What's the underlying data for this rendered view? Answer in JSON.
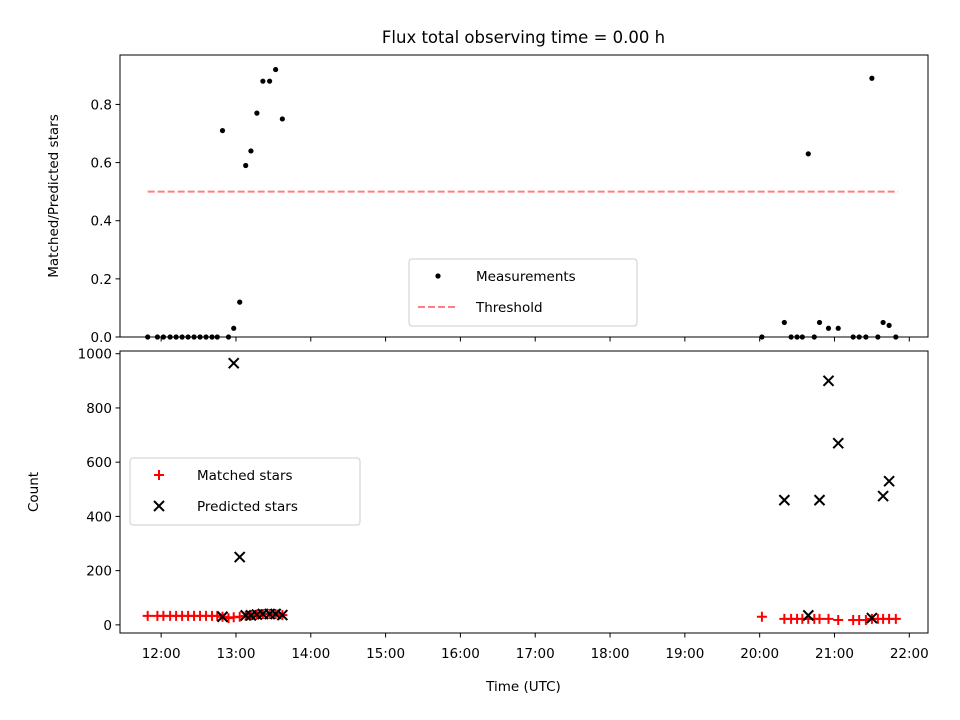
{
  "title": "Flux total observing time = 0.00 h",
  "xlabel": "Time (UTC)",
  "x_tick_labels": [
    "12:00",
    "13:00",
    "14:00",
    "15:00",
    "16:00",
    "17:00",
    "18:00",
    "19:00",
    "20:00",
    "21:00",
    "22:00"
  ],
  "chart_data": [
    {
      "type": "scatter",
      "ylabel": "Matched/Predicted stars",
      "xlim": [
        11.45,
        22.25
      ],
      "ylim": [
        0,
        0.97
      ],
      "y_ticks": [
        0.0,
        0.2,
        0.4,
        0.6,
        0.8
      ],
      "y_tick_labels": [
        "0.0",
        "0.2",
        "0.4",
        "0.6",
        "0.8"
      ],
      "legend": {
        "placement": "lower-center"
      },
      "series": [
        {
          "name": "Measurements",
          "kind": "points",
          "color": "#000000",
          "points": [
            [
              11.82,
              0
            ],
            [
              11.95,
              0
            ],
            [
              12.03,
              0
            ],
            [
              12.12,
              0
            ],
            [
              12.2,
              0
            ],
            [
              12.28,
              0
            ],
            [
              12.36,
              0
            ],
            [
              12.44,
              0
            ],
            [
              12.52,
              0
            ],
            [
              12.6,
              0
            ],
            [
              12.68,
              0
            ],
            [
              12.75,
              0
            ],
            [
              12.82,
              0.71
            ],
            [
              12.9,
              0
            ],
            [
              12.97,
              0.03
            ],
            [
              13.05,
              0.12
            ],
            [
              13.13,
              0.59
            ],
            [
              13.2,
              0.64
            ],
            [
              13.28,
              0.77
            ],
            [
              13.36,
              0.88
            ],
            [
              13.45,
              0.88
            ],
            [
              13.53,
              0.92
            ],
            [
              13.62,
              0.75
            ],
            [
              20.03,
              0
            ],
            [
              20.33,
              0.05
            ],
            [
              20.42,
              0
            ],
            [
              20.5,
              0
            ],
            [
              20.57,
              0
            ],
            [
              20.65,
              0.63
            ],
            [
              20.73,
              0
            ],
            [
              20.8,
              0.05
            ],
            [
              20.92,
              0.03
            ],
            [
              21.05,
              0.03
            ],
            [
              21.25,
              0
            ],
            [
              21.33,
              0
            ],
            [
              21.42,
              0
            ],
            [
              21.5,
              0.89
            ],
            [
              21.58,
              0
            ],
            [
              21.65,
              0.05
            ],
            [
              21.73,
              0.04
            ],
            [
              21.82,
              0
            ]
          ]
        },
        {
          "name": "Threshold",
          "kind": "dashed-line",
          "color": "#ff7f7f",
          "points": [
            [
              11.82,
              0.5
            ],
            [
              21.85,
              0.5
            ]
          ]
        }
      ]
    },
    {
      "type": "scatter",
      "ylabel": "Count",
      "xlim": [
        11.45,
        22.25
      ],
      "ylim": [
        -30,
        1010
      ],
      "y_ticks": [
        0,
        200,
        400,
        600,
        800,
        1000
      ],
      "y_tick_labels": [
        "0",
        "200",
        "400",
        "600",
        "800",
        "1000"
      ],
      "legend": {
        "placement": "center-left"
      },
      "series": [
        {
          "name": "Matched stars",
          "kind": "plus",
          "color": "#ff0000",
          "points": [
            [
              11.82,
              33
            ],
            [
              11.95,
              33
            ],
            [
              12.03,
              33
            ],
            [
              12.12,
              33
            ],
            [
              12.2,
              33
            ],
            [
              12.28,
              33
            ],
            [
              12.36,
              33
            ],
            [
              12.44,
              33
            ],
            [
              12.52,
              33
            ],
            [
              12.6,
              33
            ],
            [
              12.68,
              33
            ],
            [
              12.75,
              33
            ],
            [
              12.82,
              30
            ],
            [
              12.9,
              25
            ],
            [
              12.97,
              28
            ],
            [
              13.05,
              30
            ],
            [
              13.13,
              33
            ],
            [
              13.2,
              35
            ],
            [
              13.28,
              38
            ],
            [
              13.36,
              40
            ],
            [
              13.45,
              40
            ],
            [
              13.53,
              40
            ],
            [
              13.62,
              36
            ],
            [
              20.03,
              30
            ],
            [
              20.33,
              22
            ],
            [
              20.42,
              22
            ],
            [
              20.5,
              22
            ],
            [
              20.57,
              22
            ],
            [
              20.65,
              22
            ],
            [
              20.73,
              22
            ],
            [
              20.8,
              22
            ],
            [
              20.92,
              22
            ],
            [
              21.05,
              18
            ],
            [
              21.25,
              18
            ],
            [
              21.33,
              18
            ],
            [
              21.42,
              18
            ],
            [
              21.5,
              22
            ],
            [
              21.58,
              22
            ],
            [
              21.65,
              22
            ],
            [
              21.73,
              22
            ],
            [
              21.82,
              22
            ]
          ]
        },
        {
          "name": "Predicted stars",
          "kind": "cross",
          "color": "#000000",
          "points": [
            [
              12.82,
              30
            ],
            [
              12.97,
              965
            ],
            [
              13.05,
              250
            ],
            [
              13.13,
              35
            ],
            [
              13.2,
              35
            ],
            [
              13.28,
              38
            ],
            [
              13.36,
              40
            ],
            [
              13.45,
              40
            ],
            [
              13.53,
              40
            ],
            [
              13.62,
              36
            ],
            [
              20.33,
              460
            ],
            [
              20.65,
              35
            ],
            [
              20.8,
              460
            ],
            [
              20.92,
              900
            ],
            [
              21.05,
              670
            ],
            [
              21.5,
              25
            ],
            [
              21.65,
              475
            ],
            [
              21.73,
              530
            ]
          ]
        }
      ]
    }
  ]
}
